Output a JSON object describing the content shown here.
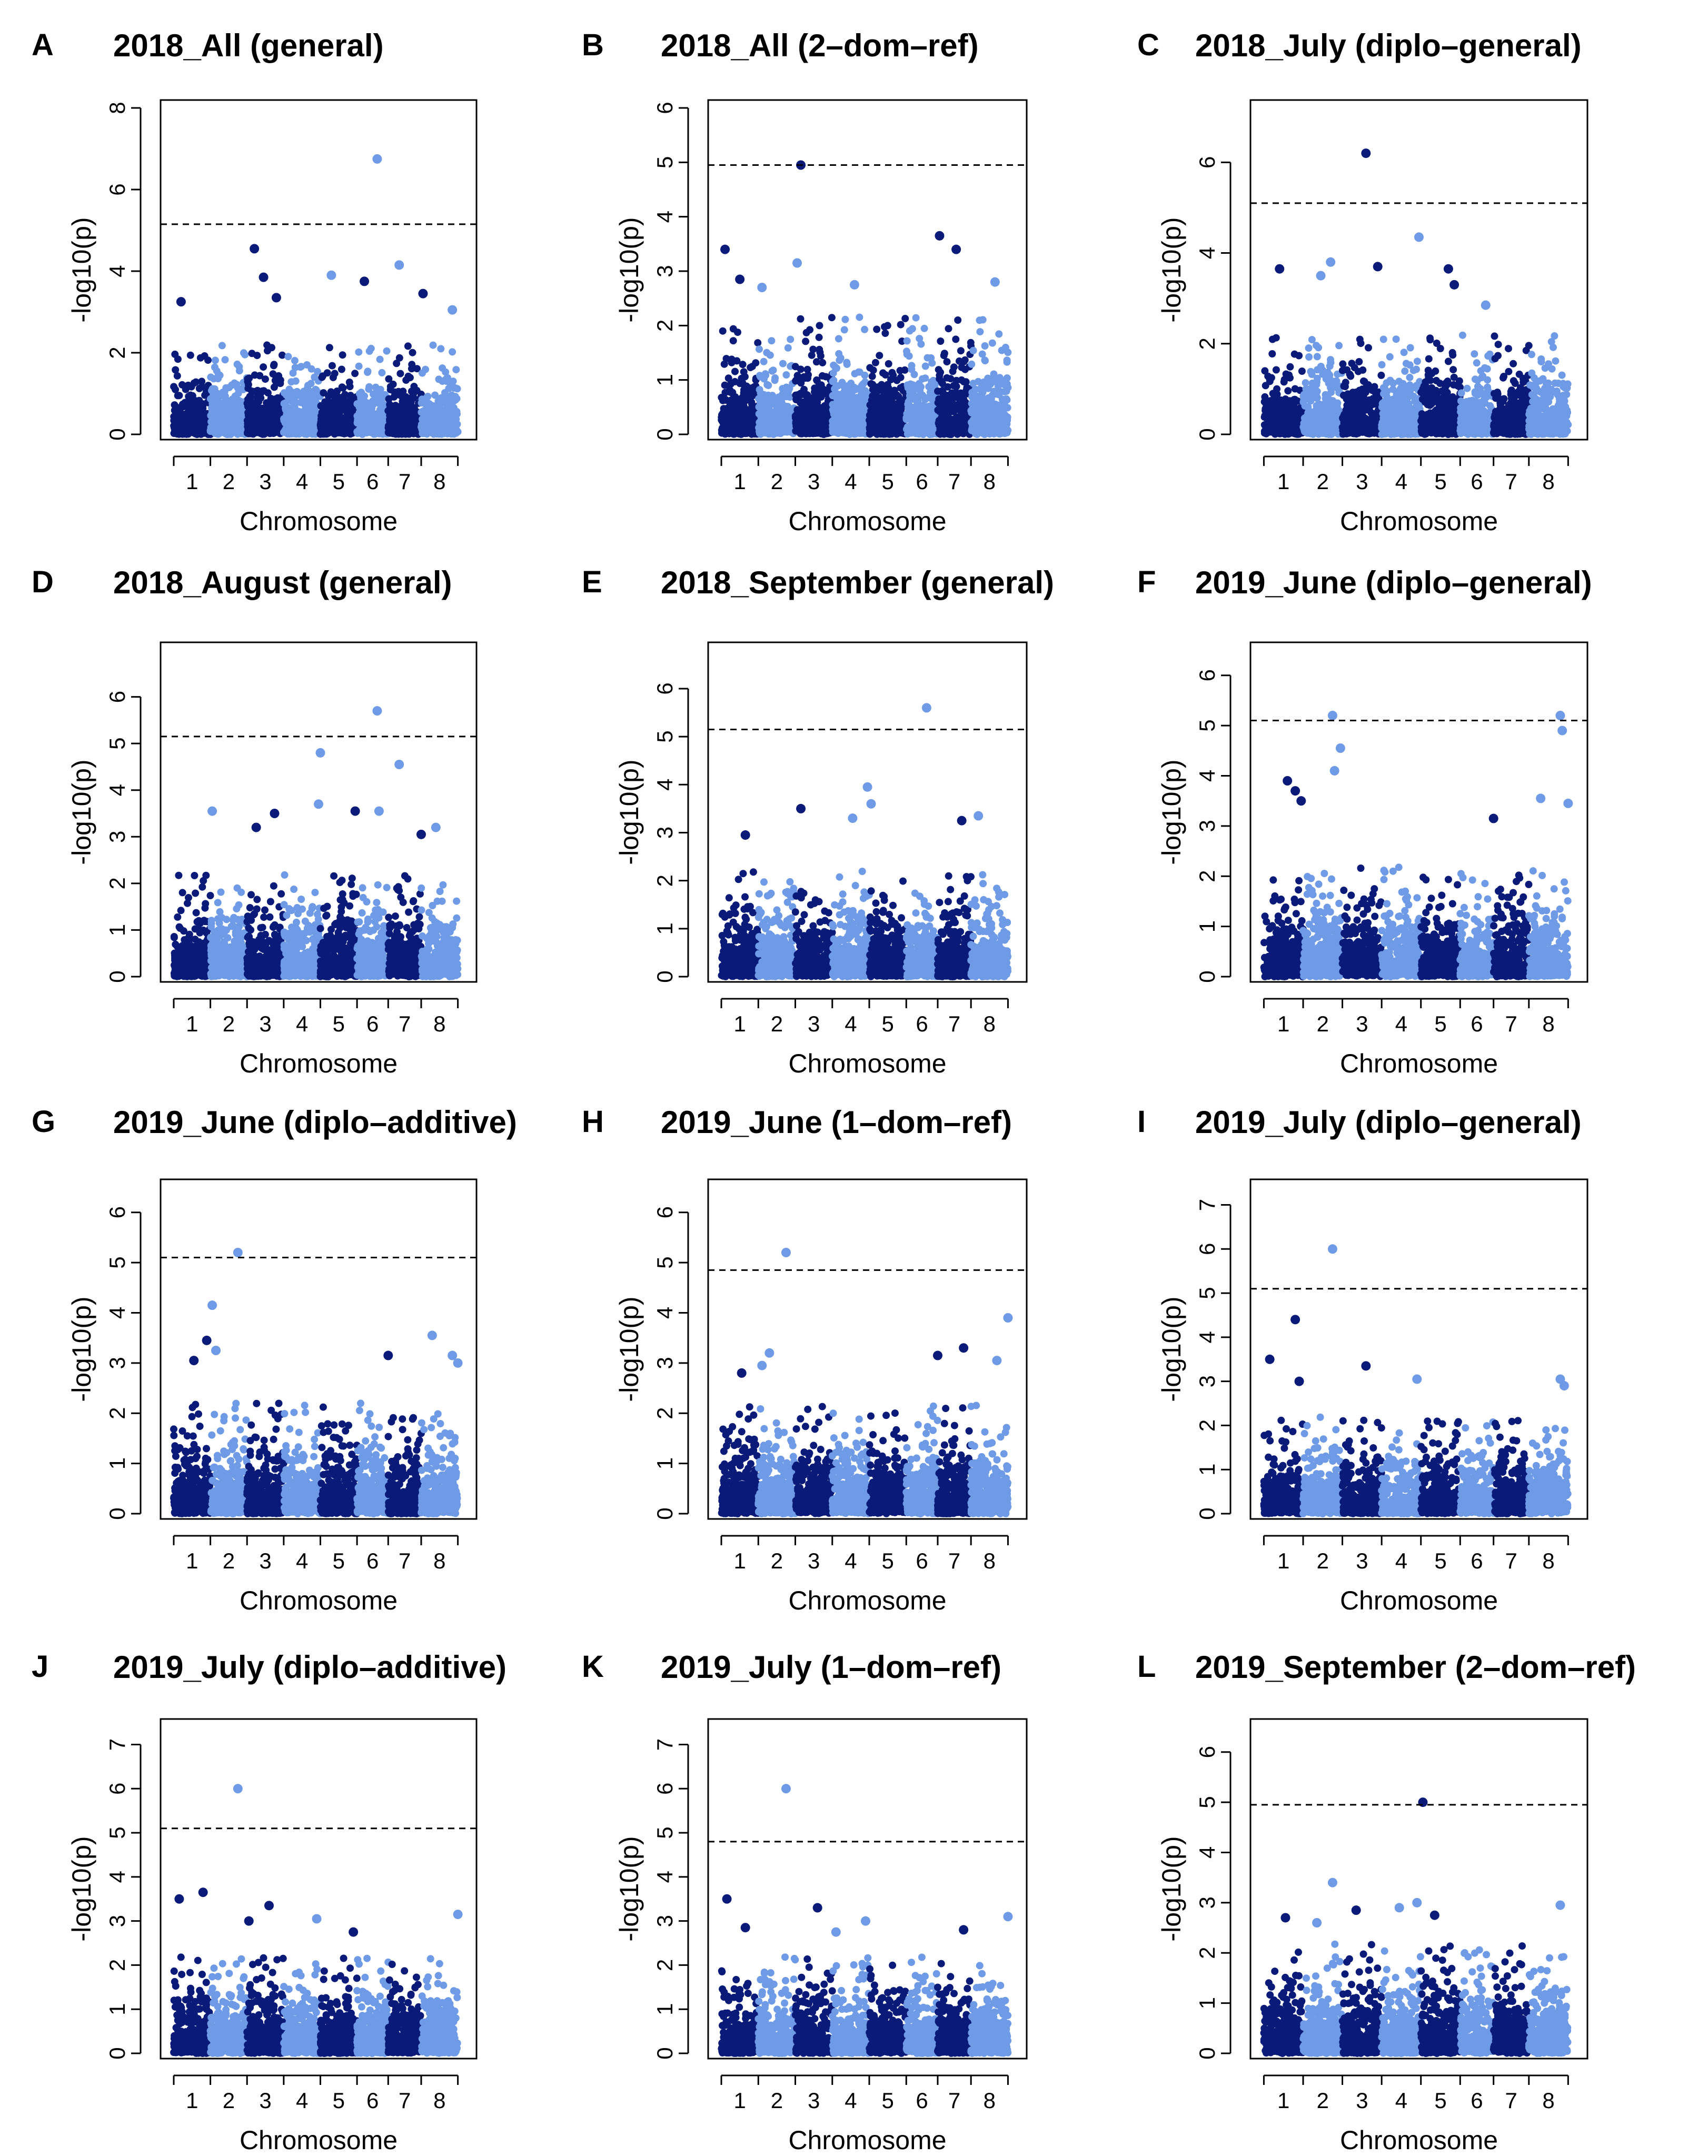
{
  "figure": {
    "background": "#ffffff",
    "colors": {
      "dark": "#0a1a78",
      "light": "#6f9be6",
      "threshold": "#000000"
    }
  },
  "chart_data": [
    {
      "letter": "A",
      "type": "scatter",
      "title": "2018_All (general)",
      "xlabel": "Chromosome",
      "ylabel": "-log10(p)",
      "chromosomes": [
        "1",
        "2",
        "3",
        "4",
        "5",
        "6",
        "7",
        "8"
      ],
      "chrom_bounds": [
        0,
        1.0,
        2.0,
        3.0,
        4.0,
        5.0,
        5.85,
        6.75,
        7.75
      ],
      "yticks": [
        0,
        2,
        4,
        6,
        8
      ],
      "ylim": [
        0,
        8
      ],
      "threshold": 5.15,
      "peaks": [
        {
          "x": 5.55,
          "y": 6.75,
          "chrom": "6"
        },
        {
          "x": 2.2,
          "y": 4.55,
          "chrom": "3"
        },
        {
          "x": 6.15,
          "y": 4.15,
          "chrom": "6"
        },
        {
          "x": 4.3,
          "y": 3.9,
          "chrom": "4"
        },
        {
          "x": 5.2,
          "y": 3.75,
          "chrom": "5"
        },
        {
          "x": 2.45,
          "y": 3.85,
          "chrom": "3"
        },
        {
          "x": 6.8,
          "y": 3.45,
          "chrom": "7"
        },
        {
          "x": 0.2,
          "y": 3.25,
          "chrom": "1"
        },
        {
          "x": 7.6,
          "y": 3.05,
          "chrom": "8"
        },
        {
          "x": 2.8,
          "y": 3.35,
          "chrom": "3"
        }
      ]
    },
    {
      "letter": "B",
      "type": "scatter",
      "title": "2018_All (2–dom–ref)",
      "xlabel": "Chromosome",
      "ylabel": "-log10(p)",
      "chromosomes": [
        "1",
        "2",
        "3",
        "4",
        "5",
        "6",
        "7",
        "8"
      ],
      "chrom_bounds": [
        0,
        1.0,
        2.0,
        3.0,
        4.0,
        5.0,
        5.85,
        6.75,
        7.75
      ],
      "yticks": [
        0,
        1,
        2,
        3,
        4,
        5,
        6
      ],
      "ylim": [
        0,
        6
      ],
      "threshold": 4.95,
      "peaks": [
        {
          "x": 2.15,
          "y": 4.95,
          "chrom": "3"
        },
        {
          "x": 5.9,
          "y": 3.65,
          "chrom": "7"
        },
        {
          "x": 0.1,
          "y": 3.4,
          "chrom": "1"
        },
        {
          "x": 6.35,
          "y": 3.4,
          "chrom": "7"
        },
        {
          "x": 2.05,
          "y": 3.15,
          "chrom": "2"
        },
        {
          "x": 0.5,
          "y": 2.85,
          "chrom": "1"
        },
        {
          "x": 7.4,
          "y": 2.8,
          "chrom": "8"
        },
        {
          "x": 1.1,
          "y": 2.7,
          "chrom": "2"
        },
        {
          "x": 3.6,
          "y": 2.75,
          "chrom": "4"
        }
      ]
    },
    {
      "letter": "C",
      "type": "scatter",
      "title": "2018_July (diplo–general)",
      "xlabel": "Chromosome",
      "ylabel": "-log10(p)",
      "chromosomes": [
        "1",
        "2",
        "3",
        "4",
        "5",
        "6",
        "7",
        "8"
      ],
      "chrom_bounds": [
        0,
        1.0,
        2.0,
        3.0,
        4.0,
        5.0,
        5.85,
        6.75,
        7.75
      ],
      "yticks": [
        0,
        2,
        4,
        6
      ],
      "ylim": [
        0,
        7.2
      ],
      "threshold": 5.1,
      "peaks": [
        {
          "x": 2.6,
          "y": 6.2,
          "chrom": "3"
        },
        {
          "x": 3.95,
          "y": 4.35,
          "chrom": "4"
        },
        {
          "x": 1.7,
          "y": 3.8,
          "chrom": "2"
        },
        {
          "x": 0.4,
          "y": 3.65,
          "chrom": "1"
        },
        {
          "x": 2.9,
          "y": 3.7,
          "chrom": "3"
        },
        {
          "x": 4.7,
          "y": 3.65,
          "chrom": "5"
        },
        {
          "x": 1.45,
          "y": 3.5,
          "chrom": "2"
        },
        {
          "x": 4.85,
          "y": 3.3,
          "chrom": "5"
        },
        {
          "x": 5.65,
          "y": 2.85,
          "chrom": "6"
        }
      ]
    },
    {
      "letter": "D",
      "type": "scatter",
      "title": "2018_August (general)",
      "xlabel": "Chromosome",
      "ylabel": "-log10(p)",
      "chromosomes": [
        "1",
        "2",
        "3",
        "4",
        "5",
        "6",
        "7",
        "8"
      ],
      "chrom_bounds": [
        0,
        1.0,
        2.0,
        3.0,
        4.0,
        5.0,
        5.85,
        6.75,
        7.75
      ],
      "yticks": [
        0,
        1,
        2,
        3,
        4,
        5,
        6
      ],
      "ylim": [
        0,
        7
      ],
      "threshold": 5.15,
      "peaks": [
        {
          "x": 5.55,
          "y": 5.7,
          "chrom": "6"
        },
        {
          "x": 4.0,
          "y": 4.8,
          "chrom": "4"
        },
        {
          "x": 6.15,
          "y": 4.55,
          "chrom": "6"
        },
        {
          "x": 3.95,
          "y": 3.7,
          "chrom": "4"
        },
        {
          "x": 1.05,
          "y": 3.55,
          "chrom": "2"
        },
        {
          "x": 4.95,
          "y": 3.55,
          "chrom": "5"
        },
        {
          "x": 2.75,
          "y": 3.5,
          "chrom": "3"
        },
        {
          "x": 5.6,
          "y": 3.55,
          "chrom": "6"
        },
        {
          "x": 2.25,
          "y": 3.2,
          "chrom": "3"
        },
        {
          "x": 7.15,
          "y": 3.2,
          "chrom": "8"
        },
        {
          "x": 6.75,
          "y": 3.05,
          "chrom": "7"
        }
      ]
    },
    {
      "letter": "E",
      "type": "scatter",
      "title": "2018_September (general)",
      "xlabel": "Chromosome",
      "ylabel": "-log10(p)",
      "chromosomes": [
        "1",
        "2",
        "3",
        "4",
        "5",
        "6",
        "7",
        "8"
      ],
      "chrom_bounds": [
        0,
        1.0,
        2.0,
        3.0,
        4.0,
        5.0,
        5.85,
        6.75,
        7.75
      ],
      "yticks": [
        0,
        1,
        2,
        3,
        4,
        5,
        6
      ],
      "ylim": [
        0,
        6.8
      ],
      "threshold": 5.15,
      "peaks": [
        {
          "x": 5.55,
          "y": 5.6,
          "chrom": "6"
        },
        {
          "x": 3.95,
          "y": 3.95,
          "chrom": "4"
        },
        {
          "x": 4.05,
          "y": 3.6,
          "chrom": "4"
        },
        {
          "x": 2.15,
          "y": 3.5,
          "chrom": "3"
        },
        {
          "x": 3.55,
          "y": 3.3,
          "chrom": "4"
        },
        {
          "x": 6.95,
          "y": 3.35,
          "chrom": "8"
        },
        {
          "x": 6.5,
          "y": 3.25,
          "chrom": "7"
        },
        {
          "x": 0.65,
          "y": 2.95,
          "chrom": "1"
        }
      ]
    },
    {
      "letter": "F",
      "type": "scatter",
      "title": "2019_June (diplo–general)",
      "xlabel": "Chromosome",
      "ylabel": "-log10(p)",
      "chromosomes": [
        "1",
        "2",
        "3",
        "4",
        "5",
        "6",
        "7",
        "8"
      ],
      "chrom_bounds": [
        0,
        1.0,
        2.0,
        3.0,
        4.0,
        5.0,
        5.85,
        6.75,
        7.75
      ],
      "yticks": [
        0,
        1,
        2,
        3,
        4,
        5,
        6
      ],
      "ylim": [
        0,
        6.5
      ],
      "threshold": 5.1,
      "peaks": [
        {
          "x": 1.75,
          "y": 5.2,
          "chrom": "2"
        },
        {
          "x": 7.55,
          "y": 5.2,
          "chrom": "8"
        },
        {
          "x": 7.6,
          "y": 4.9,
          "chrom": "8"
        },
        {
          "x": 1.95,
          "y": 4.55,
          "chrom": "2"
        },
        {
          "x": 1.8,
          "y": 4.1,
          "chrom": "2"
        },
        {
          "x": 0.6,
          "y": 3.9,
          "chrom": "1"
        },
        {
          "x": 0.8,
          "y": 3.7,
          "chrom": "1"
        },
        {
          "x": 0.95,
          "y": 3.5,
          "chrom": "1"
        },
        {
          "x": 7.05,
          "y": 3.55,
          "chrom": "8"
        },
        {
          "x": 7.75,
          "y": 3.45,
          "chrom": "8"
        },
        {
          "x": 5.85,
          "y": 3.15,
          "chrom": "7"
        }
      ]
    },
    {
      "letter": "G",
      "type": "scatter",
      "title": "2019_June (diplo–additive)",
      "xlabel": "Chromosome",
      "ylabel": "-log10(p)",
      "chromosomes": [
        "1",
        "2",
        "3",
        "4",
        "5",
        "6",
        "7",
        "8"
      ],
      "chrom_bounds": [
        0,
        1.0,
        2.0,
        3.0,
        4.0,
        5.0,
        5.85,
        6.75,
        7.75
      ],
      "yticks": [
        0,
        1,
        2,
        3,
        4,
        5,
        6
      ],
      "ylim": [
        0,
        6.5
      ],
      "threshold": 5.1,
      "peaks": [
        {
          "x": 1.75,
          "y": 5.2,
          "chrom": "2"
        },
        {
          "x": 1.05,
          "y": 4.15,
          "chrom": "2"
        },
        {
          "x": 0.9,
          "y": 3.45,
          "chrom": "1"
        },
        {
          "x": 7.05,
          "y": 3.55,
          "chrom": "8"
        },
        {
          "x": 1.15,
          "y": 3.25,
          "chrom": "2"
        },
        {
          "x": 5.85,
          "y": 3.15,
          "chrom": "7"
        },
        {
          "x": 7.6,
          "y": 3.15,
          "chrom": "8"
        },
        {
          "x": 7.75,
          "y": 3.0,
          "chrom": "8"
        },
        {
          "x": 0.55,
          "y": 3.05,
          "chrom": "1"
        }
      ]
    },
    {
      "letter": "H",
      "type": "scatter",
      "title": "2019_June (1–dom–ref)",
      "xlabel": "Chromosome",
      "ylabel": "-log10(p)",
      "chromosomes": [
        "1",
        "2",
        "3",
        "4",
        "5",
        "6",
        "7",
        "8"
      ],
      "chrom_bounds": [
        0,
        1.0,
        2.0,
        3.0,
        4.0,
        5.0,
        5.85,
        6.75,
        7.75
      ],
      "yticks": [
        0,
        1,
        2,
        3,
        4,
        5,
        6
      ],
      "ylim": [
        0,
        6.5
      ],
      "threshold": 4.85,
      "peaks": [
        {
          "x": 1.75,
          "y": 5.2,
          "chrom": "2"
        },
        {
          "x": 7.75,
          "y": 3.9,
          "chrom": "8"
        },
        {
          "x": 6.55,
          "y": 3.3,
          "chrom": "7"
        },
        {
          "x": 1.3,
          "y": 3.2,
          "chrom": "2"
        },
        {
          "x": 5.85,
          "y": 3.15,
          "chrom": "7"
        },
        {
          "x": 7.45,
          "y": 3.05,
          "chrom": "8"
        },
        {
          "x": 1.1,
          "y": 2.95,
          "chrom": "2"
        },
        {
          "x": 0.55,
          "y": 2.8,
          "chrom": "1"
        }
      ]
    },
    {
      "letter": "I",
      "type": "scatter",
      "title": "2019_July (diplo–general)",
      "xlabel": "Chromosome",
      "ylabel": "-log10(p)",
      "chromosomes": [
        "1",
        "2",
        "3",
        "4",
        "5",
        "6",
        "7",
        "8"
      ],
      "chrom_bounds": [
        0,
        1.0,
        2.0,
        3.0,
        4.0,
        5.0,
        5.85,
        6.75,
        7.75
      ],
      "yticks": [
        0,
        1,
        2,
        3,
        4,
        5,
        6,
        7
      ],
      "ylim": [
        0,
        7.4
      ],
      "threshold": 5.1,
      "peaks": [
        {
          "x": 1.75,
          "y": 6.0,
          "chrom": "2"
        },
        {
          "x": 0.8,
          "y": 4.4,
          "chrom": "1"
        },
        {
          "x": 0.15,
          "y": 3.5,
          "chrom": "1"
        },
        {
          "x": 2.6,
          "y": 3.35,
          "chrom": "3"
        },
        {
          "x": 7.55,
          "y": 3.05,
          "chrom": "8"
        },
        {
          "x": 3.9,
          "y": 3.05,
          "chrom": "4"
        },
        {
          "x": 0.9,
          "y": 3.0,
          "chrom": "1"
        },
        {
          "x": 7.65,
          "y": 2.9,
          "chrom": "8"
        }
      ]
    },
    {
      "letter": "J",
      "type": "scatter",
      "title": "2019_July (diplo–additive)",
      "xlabel": "Chromosome",
      "ylabel": "-log10(p)",
      "chromosomes": [
        "1",
        "2",
        "3",
        "4",
        "5",
        "6",
        "7",
        "8"
      ],
      "chrom_bounds": [
        0,
        1.0,
        2.0,
        3.0,
        4.0,
        5.0,
        5.85,
        6.75,
        7.75
      ],
      "yticks": [
        0,
        1,
        2,
        3,
        4,
        5,
        6,
        7
      ],
      "ylim": [
        0,
        7.4
      ],
      "threshold": 5.1,
      "peaks": [
        {
          "x": 1.75,
          "y": 6.0,
          "chrom": "2"
        },
        {
          "x": 0.8,
          "y": 3.65,
          "chrom": "1"
        },
        {
          "x": 0.15,
          "y": 3.5,
          "chrom": "1"
        },
        {
          "x": 2.6,
          "y": 3.35,
          "chrom": "3"
        },
        {
          "x": 7.75,
          "y": 3.15,
          "chrom": "8"
        },
        {
          "x": 3.9,
          "y": 3.05,
          "chrom": "4"
        },
        {
          "x": 2.05,
          "y": 3.0,
          "chrom": "3"
        },
        {
          "x": 4.9,
          "y": 2.75,
          "chrom": "5"
        }
      ]
    },
    {
      "letter": "K",
      "type": "scatter",
      "title": "2019_July (1–dom–ref)",
      "xlabel": "Chromosome",
      "ylabel": "-log10(p)",
      "chromosomes": [
        "1",
        "2",
        "3",
        "4",
        "5",
        "6",
        "7",
        "8"
      ],
      "chrom_bounds": [
        0,
        1.0,
        2.0,
        3.0,
        4.0,
        5.0,
        5.85,
        6.75,
        7.75
      ],
      "yticks": [
        0,
        1,
        2,
        3,
        4,
        5,
        6,
        7
      ],
      "ylim": [
        0,
        7.4
      ],
      "threshold": 4.8,
      "peaks": [
        {
          "x": 1.75,
          "y": 6.0,
          "chrom": "2"
        },
        {
          "x": 0.15,
          "y": 3.5,
          "chrom": "1"
        },
        {
          "x": 2.6,
          "y": 3.3,
          "chrom": "3"
        },
        {
          "x": 7.75,
          "y": 3.1,
          "chrom": "8"
        },
        {
          "x": 3.9,
          "y": 3.0,
          "chrom": "4"
        },
        {
          "x": 6.55,
          "y": 2.8,
          "chrom": "7"
        },
        {
          "x": 0.65,
          "y": 2.85,
          "chrom": "1"
        },
        {
          "x": 3.1,
          "y": 2.75,
          "chrom": "4"
        }
      ]
    },
    {
      "letter": "L",
      "type": "scatter",
      "title": "2019_September (2–dom–ref)",
      "xlabel": "Chromosome",
      "ylabel": "-log10(p)",
      "chromosomes": [
        "1",
        "2",
        "3",
        "4",
        "5",
        "6",
        "7",
        "8"
      ],
      "chrom_bounds": [
        0,
        1.0,
        2.0,
        3.0,
        4.0,
        5.0,
        5.85,
        6.75,
        7.75
      ],
      "yticks": [
        0,
        1,
        2,
        3,
        4,
        5,
        6
      ],
      "ylim": [
        0,
        6.5
      ],
      "threshold": 4.95,
      "peaks": [
        {
          "x": 4.05,
          "y": 5.0,
          "chrom": "5"
        },
        {
          "x": 1.75,
          "y": 3.4,
          "chrom": "2"
        },
        {
          "x": 3.9,
          "y": 3.0,
          "chrom": "4"
        },
        {
          "x": 7.55,
          "y": 2.95,
          "chrom": "8"
        },
        {
          "x": 2.35,
          "y": 2.85,
          "chrom": "3"
        },
        {
          "x": 3.45,
          "y": 2.9,
          "chrom": "4"
        },
        {
          "x": 4.35,
          "y": 2.75,
          "chrom": "5"
        },
        {
          "x": 0.55,
          "y": 2.7,
          "chrom": "1"
        },
        {
          "x": 1.35,
          "y": 2.6,
          "chrom": "2"
        }
      ]
    }
  ]
}
